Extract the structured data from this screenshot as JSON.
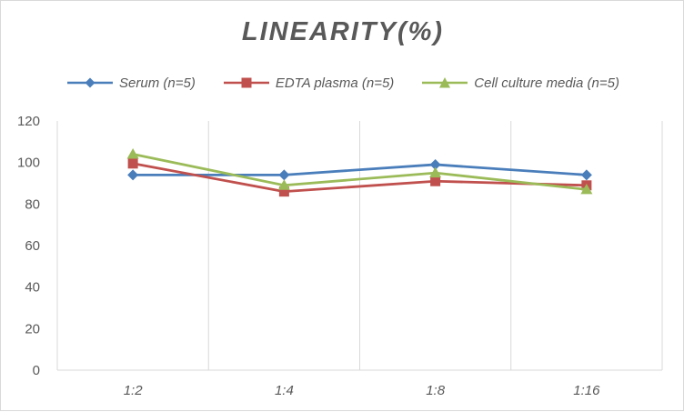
{
  "chart_data": {
    "type": "line",
    "title": "LINEARITY(%)",
    "xlabel": "",
    "ylabel": "",
    "categories": [
      "1:2",
      "1:4",
      "1:8",
      "1:16"
    ],
    "ylim": [
      0,
      120
    ],
    "yticks": [
      0,
      20,
      40,
      60,
      80,
      100,
      120
    ],
    "grid": "vertical",
    "legend_position": "top",
    "series": [
      {
        "name": "Serum (n=5)",
        "color": "#4a7ebb",
        "marker": "diamond",
        "values": [
          94,
          94,
          99,
          94
        ]
      },
      {
        "name": "EDTA plasma (n=5)",
        "color": "#c0504d",
        "marker": "square",
        "values": [
          99.5,
          86,
          91,
          89
        ]
      },
      {
        "name": "Cell culture media (n=5)",
        "color": "#9bbb59",
        "marker": "triangle",
        "values": [
          104,
          89,
          95,
          87
        ]
      }
    ]
  }
}
